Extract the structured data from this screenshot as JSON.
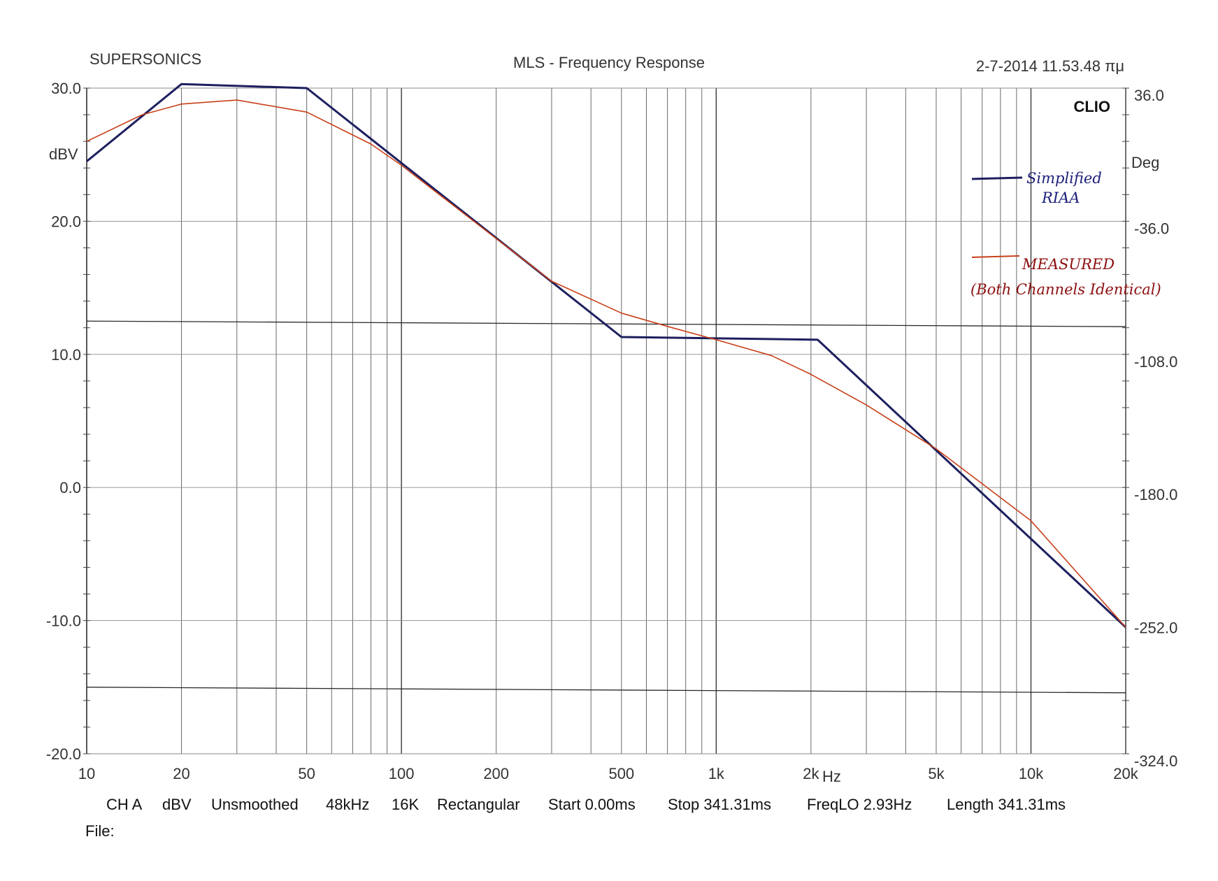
{
  "chart_data": {
    "type": "line",
    "header": {
      "left": "SUPERSONICS",
      "title": "MLS - Frequency Response",
      "right": "2-7-2014 11.53.48 πμ"
    },
    "brand": "CLIO",
    "y_left": {
      "unit": "dBV",
      "range": [
        -20,
        30
      ],
      "ticks": [
        "30.0",
        "20.0",
        "10.0",
        "0.0",
        "-10.0",
        "-20.0"
      ]
    },
    "y_right": {
      "unit": "Deg",
      "range": [
        -324,
        36
      ],
      "ticks": [
        "36.0",
        "-36.0",
        "-108.0",
        "-180.0",
        "-252.0",
        "-324.0"
      ]
    },
    "x": {
      "scale": "log",
      "range": [
        10,
        20000
      ],
      "unit": "Hz",
      "tick_values": [
        10,
        20,
        50,
        100,
        200,
        500,
        1000,
        2000,
        5000,
        10000,
        20000
      ],
      "tick_labels": [
        "10",
        "20",
        "50",
        "100",
        "200",
        "500",
        "1k",
        "2k",
        "5k",
        "10k",
        "20k"
      ]
    },
    "series": [
      {
        "name": "Simplified RIAA",
        "annotation": [
          "Simplified",
          "RIAA"
        ],
        "color": "#1d1f5e",
        "points": [
          [
            10,
            24.5
          ],
          [
            20,
            30.3
          ],
          [
            50,
            30.0
          ],
          [
            500,
            11.3
          ],
          [
            2100,
            11.1
          ],
          [
            20000,
            -10.5
          ]
        ]
      },
      {
        "name": "MEASURED",
        "annotation": [
          "MEASURED",
          "(Both Channels Identical)"
        ],
        "color": "#c8401a",
        "points": [
          [
            10,
            26.0
          ],
          [
            15,
            28.0
          ],
          [
            20,
            28.8
          ],
          [
            30,
            29.1
          ],
          [
            50,
            28.2
          ],
          [
            80,
            25.8
          ],
          [
            100,
            24.2
          ],
          [
            200,
            18.7
          ],
          [
            300,
            15.5
          ],
          [
            500,
            13.1
          ],
          [
            700,
            12.1
          ],
          [
            1000,
            11.1
          ],
          [
            1500,
            9.9
          ],
          [
            2000,
            8.5
          ],
          [
            3000,
            6.2
          ],
          [
            5000,
            2.9
          ],
          [
            10000,
            -2.5
          ],
          [
            20000,
            -10.5
          ]
        ]
      }
    ],
    "phase_lines_deg": [
      -90,
      -288
    ],
    "grid": true
  },
  "footer": {
    "items": [
      "CH A",
      "dBV",
      "Unsmoothed",
      "48kHz",
      "16K",
      "Rectangular",
      "Start 0.00ms",
      "Stop 341.31ms",
      "FreqLO 2.93Hz",
      "Length 341.31ms"
    ],
    "file_label": "File:"
  }
}
